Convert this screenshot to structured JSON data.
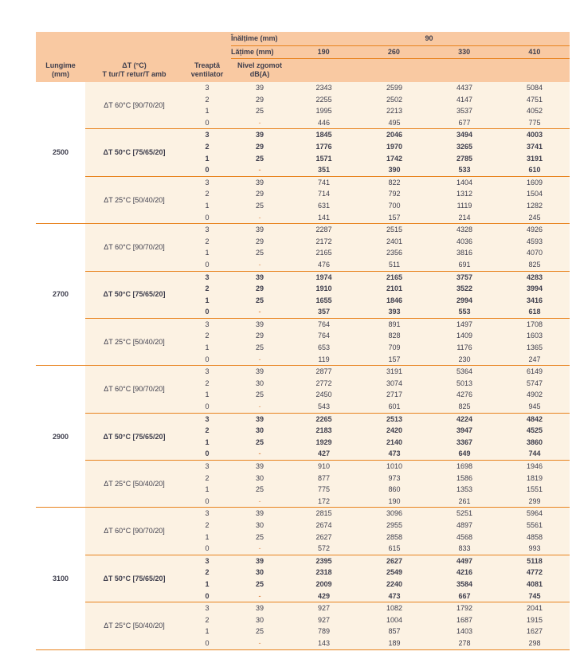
{
  "colors": {
    "header_bg": "#f9c9a2",
    "body_bg": "#fcf2e3",
    "rule_orange": "#e8831e",
    "text": "#3d3d4c",
    "dash": "#e2955c",
    "lungime_col_bg": "#ffffff"
  },
  "header": {
    "height_label": "Înălțime (mm)",
    "height_value": "90",
    "width_label": "Lățime (mm)",
    "width_values": [
      "190",
      "260",
      "330",
      "410"
    ],
    "length_l1": "Lungime",
    "length_l2": "(mm)",
    "dt_l1": "ΔT (°C)",
    "dt_l2": "T tur/T retur/T amb",
    "fan_l1": "Treaptă",
    "fan_l2": "ventilator",
    "noise_l1": "Nivel zgomot",
    "noise_l2": "dB(A)"
  },
  "table": {
    "groups": [
      {
        "lungime": "2500",
        "subgroups": [
          {
            "label": "ΔT 60°C [90/70/20]",
            "bold": false,
            "rows": [
              {
                "fan": "3",
                "noise": "39",
                "values": [
                  "2343",
                  "2599",
                  "4437",
                  "5084"
                ]
              },
              {
                "fan": "2",
                "noise": "29",
                "values": [
                  "2255",
                  "2502",
                  "4147",
                  "4751"
                ]
              },
              {
                "fan": "1",
                "noise": "25",
                "values": [
                  "1995",
                  "2213",
                  "3537",
                  "4052"
                ]
              },
              {
                "fan": "0",
                "noise": "-",
                "values": [
                  "446",
                  "495",
                  "677",
                  "775"
                ]
              }
            ]
          },
          {
            "label": "ΔT 50°C [75/65/20]",
            "bold": true,
            "rows": [
              {
                "fan": "3",
                "noise": "39",
                "values": [
                  "1845",
                  "2046",
                  "3494",
                  "4003"
                ]
              },
              {
                "fan": "2",
                "noise": "29",
                "values": [
                  "1776",
                  "1970",
                  "3265",
                  "3741"
                ]
              },
              {
                "fan": "1",
                "noise": "25",
                "values": [
                  "1571",
                  "1742",
                  "2785",
                  "3191"
                ]
              },
              {
                "fan": "0",
                "noise": "-",
                "values": [
                  "351",
                  "390",
                  "533",
                  "610"
                ]
              }
            ]
          },
          {
            "label": "ΔT 25°C [50/40/20]",
            "bold": false,
            "rows": [
              {
                "fan": "3",
                "noise": "39",
                "values": [
                  "741",
                  "822",
                  "1404",
                  "1609"
                ]
              },
              {
                "fan": "2",
                "noise": "29",
                "values": [
                  "714",
                  "792",
                  "1312",
                  "1504"
                ]
              },
              {
                "fan": "1",
                "noise": "25",
                "values": [
                  "631",
                  "700",
                  "1119",
                  "1282"
                ]
              },
              {
                "fan": "0",
                "noise": "-",
                "values": [
                  "141",
                  "157",
                  "214",
                  "245"
                ]
              }
            ]
          }
        ]
      },
      {
        "lungime": "2700",
        "subgroups": [
          {
            "label": "ΔT 60°C [90/70/20]",
            "bold": false,
            "rows": [
              {
                "fan": "3",
                "noise": "39",
                "values": [
                  "2287",
                  "2515",
                  "4328",
                  "4926"
                ]
              },
              {
                "fan": "2",
                "noise": "29",
                "values": [
                  "2172",
                  "2401",
                  "4036",
                  "4593"
                ]
              },
              {
                "fan": "1",
                "noise": "25",
                "values": [
                  "2165",
                  "2356",
                  "3816",
                  "4070"
                ]
              },
              {
                "fan": "0",
                "noise": "-",
                "values": [
                  "476",
                  "511",
                  "691",
                  "825"
                ]
              }
            ]
          },
          {
            "label": "ΔT 50°C [75/65/20]",
            "bold": true,
            "rows": [
              {
                "fan": "3",
                "noise": "39",
                "values": [
                  "1974",
                  "2165",
                  "3757",
                  "4283"
                ]
              },
              {
                "fan": "2",
                "noise": "29",
                "values": [
                  "1910",
                  "2101",
                  "3522",
                  "3994"
                ]
              },
              {
                "fan": "1",
                "noise": "25",
                "values": [
                  "1655",
                  "1846",
                  "2994",
                  "3416"
                ]
              },
              {
                "fan": "0",
                "noise": "-",
                "values": [
                  "357",
                  "393",
                  "553",
                  "618"
                ]
              }
            ]
          },
          {
            "label": "ΔT 25°C [50/40/20]",
            "bold": false,
            "rows": [
              {
                "fan": "3",
                "noise": "39",
                "values": [
                  "764",
                  "891",
                  "1497",
                  "1708"
                ]
              },
              {
                "fan": "2",
                "noise": "29",
                "values": [
                  "764",
                  "828",
                  "1409",
                  "1603"
                ]
              },
              {
                "fan": "1",
                "noise": "25",
                "values": [
                  "653",
                  "709",
                  "1176",
                  "1365"
                ]
              },
              {
                "fan": "0",
                "noise": "-",
                "values": [
                  "119",
                  "157",
                  "230",
                  "247"
                ]
              }
            ]
          }
        ]
      },
      {
        "lungime": "2900",
        "subgroups": [
          {
            "label": "ΔT 60°C [90/70/20]",
            "bold": false,
            "rows": [
              {
                "fan": "3",
                "noise": "39",
                "values": [
                  "2877",
                  "3191",
                  "5364",
                  "6149"
                ]
              },
              {
                "fan": "2",
                "noise": "30",
                "values": [
                  "2772",
                  "3074",
                  "5013",
                  "5747"
                ]
              },
              {
                "fan": "1",
                "noise": "25",
                "values": [
                  "2450",
                  "2717",
                  "4276",
                  "4902"
                ]
              },
              {
                "fan": "0",
                "noise": "-",
                "values": [
                  "543",
                  "601",
                  "825",
                  "945"
                ]
              }
            ]
          },
          {
            "label": "ΔT 50°C [75/65/20]",
            "bold": true,
            "rows": [
              {
                "fan": "3",
                "noise": "39",
                "values": [
                  "2265",
                  "2513",
                  "4224",
                  "4842"
                ]
              },
              {
                "fan": "2",
                "noise": "30",
                "values": [
                  "2183",
                  "2420",
                  "3947",
                  "4525"
                ]
              },
              {
                "fan": "1",
                "noise": "25",
                "values": [
                  "1929",
                  "2140",
                  "3367",
                  "3860"
                ]
              },
              {
                "fan": "0",
                "noise": "-",
                "values": [
                  "427",
                  "473",
                  "649",
                  "744"
                ]
              }
            ]
          },
          {
            "label": "ΔT 25°C [50/40/20]",
            "bold": false,
            "rows": [
              {
                "fan": "3",
                "noise": "39",
                "values": [
                  "910",
                  "1010",
                  "1698",
                  "1946"
                ]
              },
              {
                "fan": "2",
                "noise": "30",
                "values": [
                  "877",
                  "973",
                  "1586",
                  "1819"
                ]
              },
              {
                "fan": "1",
                "noise": "25",
                "values": [
                  "775",
                  "860",
                  "1353",
                  "1551"
                ]
              },
              {
                "fan": "0",
                "noise": "-",
                "values": [
                  "172",
                  "190",
                  "261",
                  "299"
                ]
              }
            ]
          }
        ]
      },
      {
        "lungime": "3100",
        "subgroups": [
          {
            "label": "ΔT 60°C [90/70/20]",
            "bold": false,
            "rows": [
              {
                "fan": "3",
                "noise": "39",
                "values": [
                  "2815",
                  "3096",
                  "5251",
                  "5964"
                ]
              },
              {
                "fan": "2",
                "noise": "30",
                "values": [
                  "2674",
                  "2955",
                  "4897",
                  "5561"
                ]
              },
              {
                "fan": "1",
                "noise": "25",
                "values": [
                  "2627",
                  "2858",
                  "4568",
                  "4858"
                ]
              },
              {
                "fan": "0",
                "noise": "-",
                "values": [
                  "572",
                  "615",
                  "833",
                  "993"
                ]
              }
            ]
          },
          {
            "label": "ΔT 50°C [75/65/20]",
            "bold": true,
            "rows": [
              {
                "fan": "3",
                "noise": "39",
                "values": [
                  "2395",
                  "2627",
                  "4497",
                  "5118"
                ]
              },
              {
                "fan": "2",
                "noise": "30",
                "values": [
                  "2318",
                  "2549",
                  "4216",
                  "4772"
                ]
              },
              {
                "fan": "1",
                "noise": "25",
                "values": [
                  "2009",
                  "2240",
                  "3584",
                  "4081"
                ]
              },
              {
                "fan": "0",
                "noise": "-",
                "values": [
                  "429",
                  "473",
                  "667",
                  "745"
                ]
              }
            ]
          },
          {
            "label": "ΔT 25°C [50/40/20]",
            "bold": false,
            "rows": [
              {
                "fan": "3",
                "noise": "39",
                "values": [
                  "927",
                  "1082",
                  "1792",
                  "2041"
                ]
              },
              {
                "fan": "2",
                "noise": "30",
                "values": [
                  "927",
                  "1004",
                  "1687",
                  "1915"
                ]
              },
              {
                "fan": "1",
                "noise": "25",
                "values": [
                  "789",
                  "857",
                  "1403",
                  "1627"
                ]
              },
              {
                "fan": "0",
                "noise": "-",
                "values": [
                  "143",
                  "189",
                  "278",
                  "298"
                ]
              }
            ]
          }
        ]
      }
    ]
  }
}
